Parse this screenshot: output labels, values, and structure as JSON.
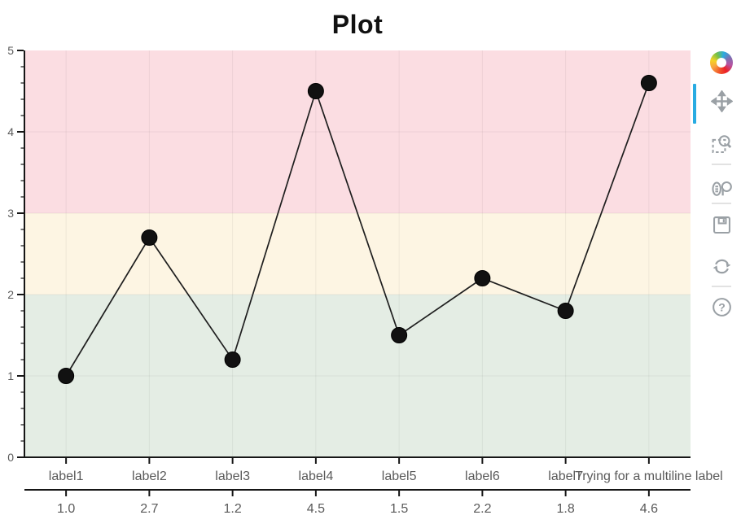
{
  "title": "Plot",
  "chart_data": {
    "type": "line",
    "title": "Plot",
    "categories": [
      "label1",
      "label2",
      "label3",
      "label4",
      "label5",
      "label6",
      "label7",
      "Trying for a multiline label"
    ],
    "values": [
      1.0,
      2.7,
      1.2,
      4.5,
      1.5,
      2.2,
      1.8,
      4.6
    ],
    "point_labels": [
      "1.0",
      "2.7",
      "1.2",
      "4.5",
      "1.5",
      "2.2",
      "1.8",
      "4.6"
    ],
    "xlabel": "",
    "ylabel": "",
    "ylim": [
      0,
      5
    ],
    "y_tick_labels": [
      "0",
      "1",
      "2",
      "3",
      "4",
      "5"
    ],
    "y_minor_step": 0.2,
    "grid": true,
    "legend": "none",
    "bands": [
      {
        "from": 0,
        "to": 2,
        "color": "#e4ede4"
      },
      {
        "from": 2,
        "to": 3,
        "color": "#fdf5e3"
      },
      {
        "from": 3,
        "to": 5,
        "color": "#fbdde2"
      }
    ],
    "line_color": "#1f1f1f",
    "marker_color": "#111111",
    "axis_color": "#161616",
    "tick_label_color": "#5a5a5a",
    "grid_color": "rgba(0,0,0,0.055)"
  },
  "toolbar": {
    "active_color": "#28abe2",
    "icon_color": "#9aa0a5",
    "help_glyph": "?",
    "tools": [
      {
        "name": "pan",
        "active": true
      },
      {
        "name": "box-zoom",
        "active": false
      },
      {
        "name": "wheel-zoom",
        "active": false
      },
      {
        "name": "save",
        "active": false
      },
      {
        "name": "reset",
        "active": false
      },
      {
        "name": "help",
        "active": false
      }
    ]
  }
}
